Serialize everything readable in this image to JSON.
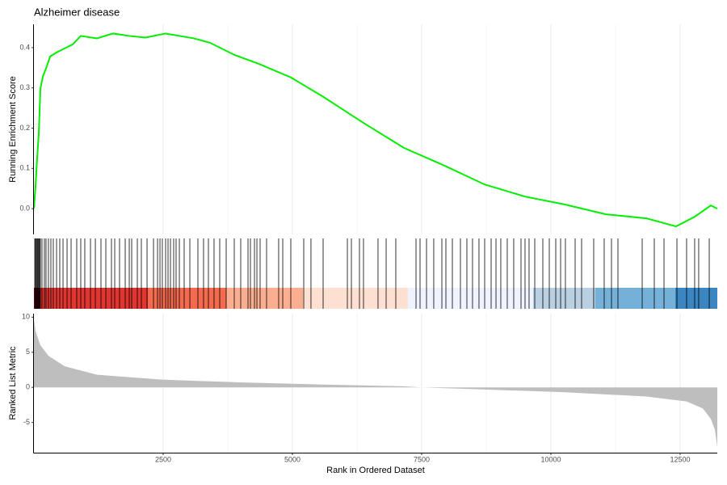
{
  "chart_data": {
    "type": "gsea",
    "title": "Alzheimer disease",
    "xlabel": "Rank in Ordered Dataset",
    "ylabel": "Running Enrichment Score",
    "y2label": "Ranked List Metric",
    "xlim": [
      0,
      13219
    ],
    "xticks": [
      2500,
      5000,
      7500,
      10000,
      12500
    ],
    "ylim": [
      -0.064,
      0.458
    ],
    "yticks": [
      {
        "value": 0,
        "label": "0.0"
      },
      0.1,
      0.2,
      0.3,
      0.4
    ],
    "y2lim": [
      -9.3,
      10.5
    ],
    "y2ticks": [
      -5,
      0,
      5,
      10
    ],
    "grid": true,
    "running_score": {
      "color": "#00ee00",
      "x": [
        0,
        31,
        63,
        94,
        125,
        172,
        234,
        313,
        438,
        594,
        750,
        906,
        1219,
        1531,
        1844,
        2156,
        2547,
        3094,
        3406,
        3875,
        4344,
        4969,
        5594,
        6375,
        7156,
        7938,
        8719,
        9500,
        10281,
        11063,
        11844,
        12422,
        12781,
        13094,
        13219
      ],
      "values": [
        0,
        0.056,
        0.127,
        0.187,
        0.298,
        0.328,
        0.348,
        0.378,
        0.388,
        0.398,
        0.408,
        0.429,
        0.423,
        0.435,
        0.429,
        0.425,
        0.435,
        0.423,
        0.412,
        0.382,
        0.36,
        0.326,
        0.278,
        0.213,
        0.151,
        0.107,
        0.06,
        0.03,
        0.01,
        -0.014,
        -0.024,
        -0.044,
        -0.02,
        0.008,
        0
      ]
    },
    "hits": [
      16,
      31,
      47,
      63,
      78,
      94,
      109,
      125,
      156,
      203,
      234,
      281,
      328,
      375,
      438,
      500,
      563,
      641,
      719,
      828,
      906,
      984,
      1094,
      1188,
      1297,
      1391,
      1500,
      1563,
      1656,
      1766,
      1844,
      1891,
      2000,
      2078,
      2188,
      2313,
      2391,
      2438,
      2484,
      2547,
      2594,
      2641,
      2703,
      2750,
      2813,
      2906,
      3016,
      3172,
      3281,
      3375,
      3484,
      3594,
      3719,
      3875,
      4000,
      4141,
      4188,
      4266,
      4313,
      4375,
      4500,
      4734,
      4813,
      4969,
      5219,
      5359,
      5594,
      6063,
      6141,
      6297,
      6375,
      6656,
      6813,
      7000,
      7391,
      7469,
      7594,
      7734,
      7891,
      7969,
      8094,
      8250,
      8375,
      8484,
      8609,
      8719,
      8844,
      8938,
      9031,
      9156,
      9281,
      9422,
      9500,
      9578,
      9688,
      9844,
      9969,
      10094,
      10188,
      10281,
      10469,
      10594,
      10828,
      11031,
      11172,
      11297,
      11766,
      12000,
      12188,
      12438,
      12625,
      12781,
      12859,
      13063
    ],
    "bands": {
      "edges": [
        0,
        125,
        2203,
        3719,
        5203,
        7234,
        9656,
        10859,
        12406,
        13219
      ],
      "colors": [
        "#8b0d14",
        "#e03530",
        "#f46a4e",
        "#fcae91",
        "#fee0d2",
        "#eef3fd",
        "#b9d0e2",
        "#74b0d8",
        "#3b85c0"
      ]
    },
    "ranked_metric": {
      "color": "#bebebe",
      "x": [
        0,
        31,
        125,
        281,
        594,
        1219,
        2469,
        4031,
        5594,
        7156,
        7500,
        8719,
        10281,
        11844,
        12625,
        12938,
        13094,
        13172,
        13219
      ],
      "values": [
        9.7,
        8,
        6,
        4.5,
        3,
        1.8,
        1.1,
        0.7,
        0.4,
        0.15,
        0,
        -0.3,
        -0.7,
        -1.3,
        -2,
        -3,
        -4.5,
        -6,
        -8.5
      ]
    }
  }
}
